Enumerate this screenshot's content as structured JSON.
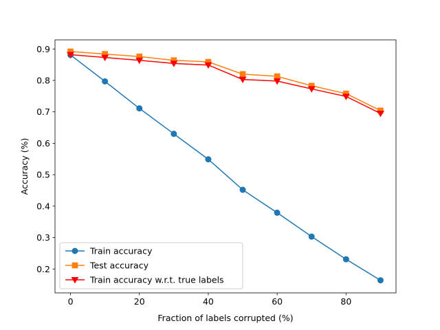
{
  "chart_data": {
    "type": "line",
    "title": "",
    "xlabel": "Fraction of labels corrupted (%)",
    "ylabel": "Accuracy (%)",
    "x": [
      0,
      10,
      20,
      30,
      40,
      50,
      60,
      70,
      80,
      90
    ],
    "xlim": [
      -4.5,
      94.5
    ],
    "ylim": [
      0.124,
      0.929
    ],
    "xticks": [
      0,
      20,
      40,
      60,
      80
    ],
    "yticks": [
      0.2,
      0.3,
      0.4,
      0.5,
      0.6,
      0.7,
      0.8,
      0.9
    ],
    "grid": false,
    "legend_position": "lower-left",
    "series": [
      {
        "name": "Train accuracy",
        "color": "#1f77b4",
        "marker": "circle",
        "values": [
          0.881,
          0.797,
          0.711,
          0.63,
          0.549,
          0.452,
          0.379,
          0.303,
          0.231,
          0.164
        ]
      },
      {
        "name": "Test accuracy",
        "color": "#ff7f0e",
        "marker": "square",
        "values": [
          0.892,
          0.884,
          0.876,
          0.864,
          0.859,
          0.82,
          0.813,
          0.783,
          0.758,
          0.704
        ]
      },
      {
        "name": "Train accuracy w.r.t. true labels",
        "color": "#ff0000",
        "marker": "triangle-down",
        "values": [
          0.882,
          0.873,
          0.864,
          0.854,
          0.849,
          0.803,
          0.798,
          0.773,
          0.749,
          0.695
        ]
      }
    ]
  }
}
